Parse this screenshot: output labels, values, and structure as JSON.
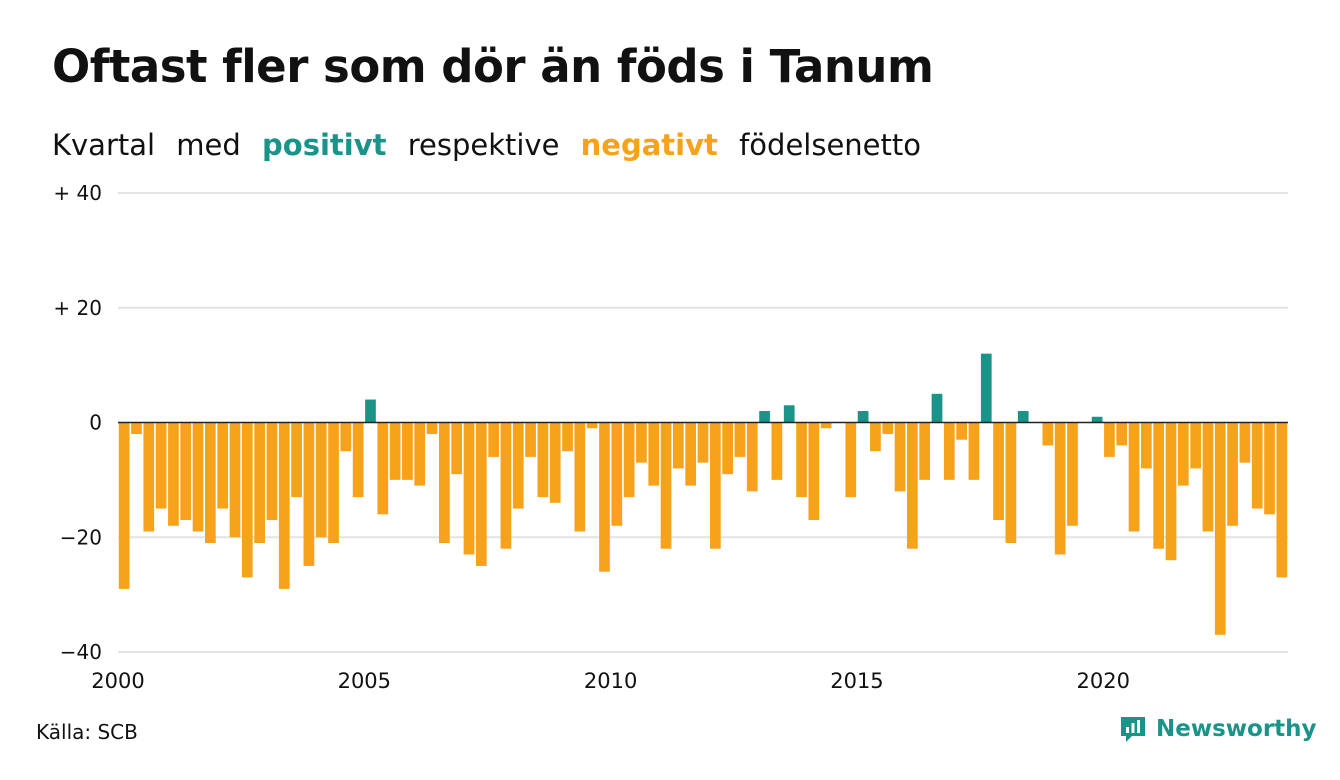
{
  "title": "Oftast fler som dör än föds i Tanum",
  "subtitle": {
    "word1": "Kvartal",
    "word2": "med",
    "positive": "positivt",
    "word3": "respektive",
    "negative": "negativt",
    "word4": "födelsenetto"
  },
  "colors": {
    "positive": "#1a9488",
    "negative": "#f7a21b",
    "grid": "#e3e3e3",
    "axis": "#222222",
    "brand": "#1a9488"
  },
  "source": "Källa: SCB",
  "brand": {
    "name": "Newsworthy",
    "icon": "newsworthy-chart-icon"
  },
  "chart_data": {
    "type": "bar",
    "x_start": "2000 Q1",
    "frequency": "quarterly",
    "ylim": [
      -40,
      40
    ],
    "y_ticks": [
      40,
      20,
      0,
      -20,
      -40
    ],
    "y_tick_labels": [
      "+ 40",
      "+ 20",
      "0",
      "−20",
      "−40"
    ],
    "x_tick_labels": [
      "2000",
      "2005",
      "2010",
      "2015",
      "2020"
    ],
    "grid": true,
    "values": [
      -29,
      -2,
      -19,
      -15,
      -18,
      -17,
      -19,
      -21,
      -15,
      -20,
      -27,
      -21,
      -17,
      -29,
      -13,
      -25,
      -20,
      -21,
      -5,
      -13,
      4,
      -16,
      -10,
      -10,
      -11,
      -2,
      -21,
      -9,
      -23,
      -25,
      -6,
      -22,
      -15,
      -6,
      -13,
      -14,
      -5,
      -19,
      -1,
      -26,
      -18,
      -13,
      -7,
      -11,
      -22,
      -8,
      -11,
      -7,
      -22,
      -9,
      -6,
      -12,
      2,
      -10,
      3,
      -13,
      -17,
      -1,
      0,
      -13,
      2,
      -5,
      -2,
      -12,
      -22,
      -10,
      5,
      -10,
      -3,
      -10,
      12,
      -17,
      -21,
      2,
      0,
      -4,
      -23,
      -18,
      0,
      1,
      -6,
      -4,
      -19,
      -8,
      -22,
      -24,
      -11,
      -8,
      -19,
      -37,
      -18,
      -7,
      -15,
      -16,
      -27
    ]
  }
}
